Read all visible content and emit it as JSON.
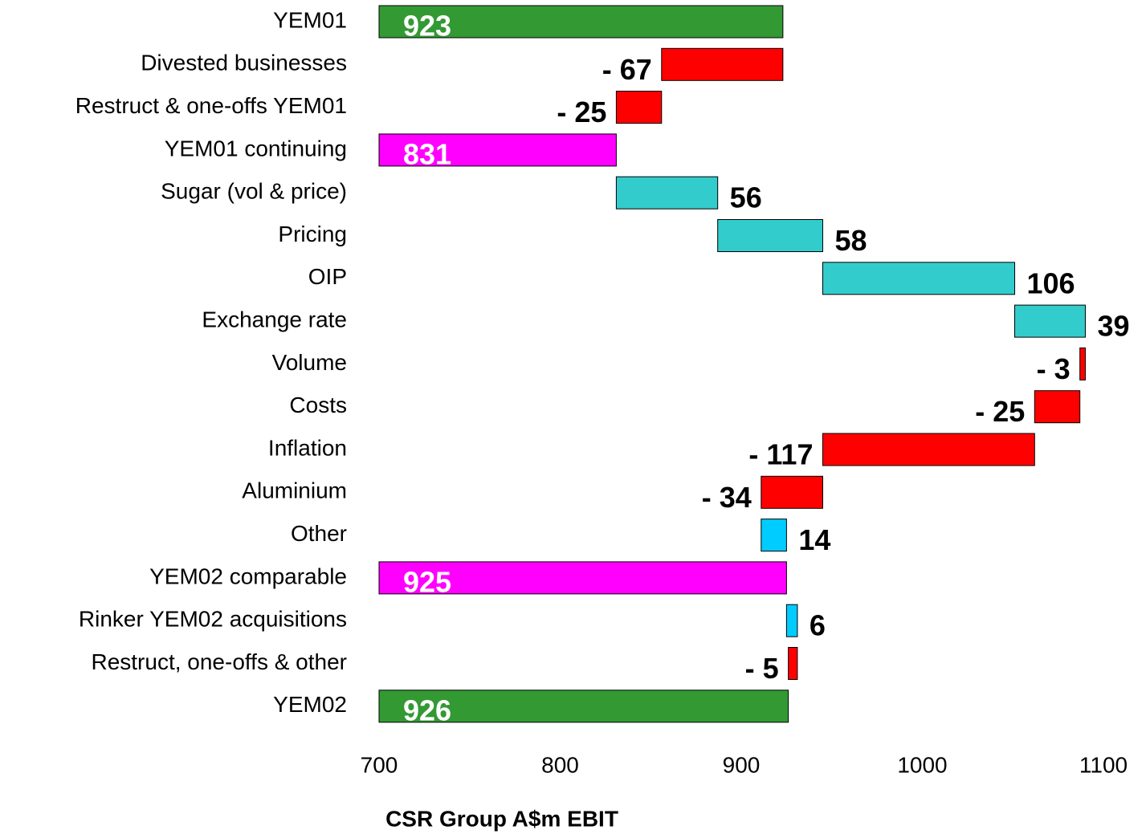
{
  "chart_data": {
    "type": "waterfall",
    "categories": [
      "YEM01",
      "Divested businesses",
      "Restruct & one-offs YEM01",
      "YEM01 continuing",
      "Sugar (vol & price)",
      "Pricing",
      "OIP",
      "Exchange rate",
      "Volume",
      "Costs",
      "Inflation",
      "Aluminium",
      "Other",
      "YEM02 comparable",
      "Rinker YEM02 acquisitions",
      "Restruct, one-offs & other",
      "YEM02"
    ],
    "values": [
      923,
      -67,
      -25,
      831,
      56,
      58,
      106,
      39,
      -3,
      -25,
      -117,
      -34,
      14,
      925,
      6,
      -5,
      926
    ],
    "value_labels": [
      "923",
      "- 67",
      "- 25",
      "831",
      "56",
      "58",
      "106",
      "39",
      "- 3",
      "- 25",
      "- 117",
      "- 34",
      "14",
      "925",
      "6",
      "- 5",
      "926"
    ],
    "totals": [
      true,
      false,
      false,
      true,
      false,
      false,
      false,
      false,
      false,
      false,
      false,
      false,
      false,
      true,
      false,
      false,
      true
    ],
    "colors": [
      "#339933",
      "#ff0000",
      "#ff0000",
      "#ff00ff",
      "#33cccc",
      "#33cccc",
      "#33cccc",
      "#33cccc",
      "#ff0000",
      "#ff0000",
      "#ff0000",
      "#ff0000",
      "#00ccff",
      "#ff00ff",
      "#00ccff",
      "#ff0000",
      "#339933"
    ],
    "xlim": [
      700,
      1100
    ],
    "xticks": [
      700,
      800,
      900,
      1000,
      1100
    ],
    "x_label": "CSR Group A$m EBIT"
  }
}
